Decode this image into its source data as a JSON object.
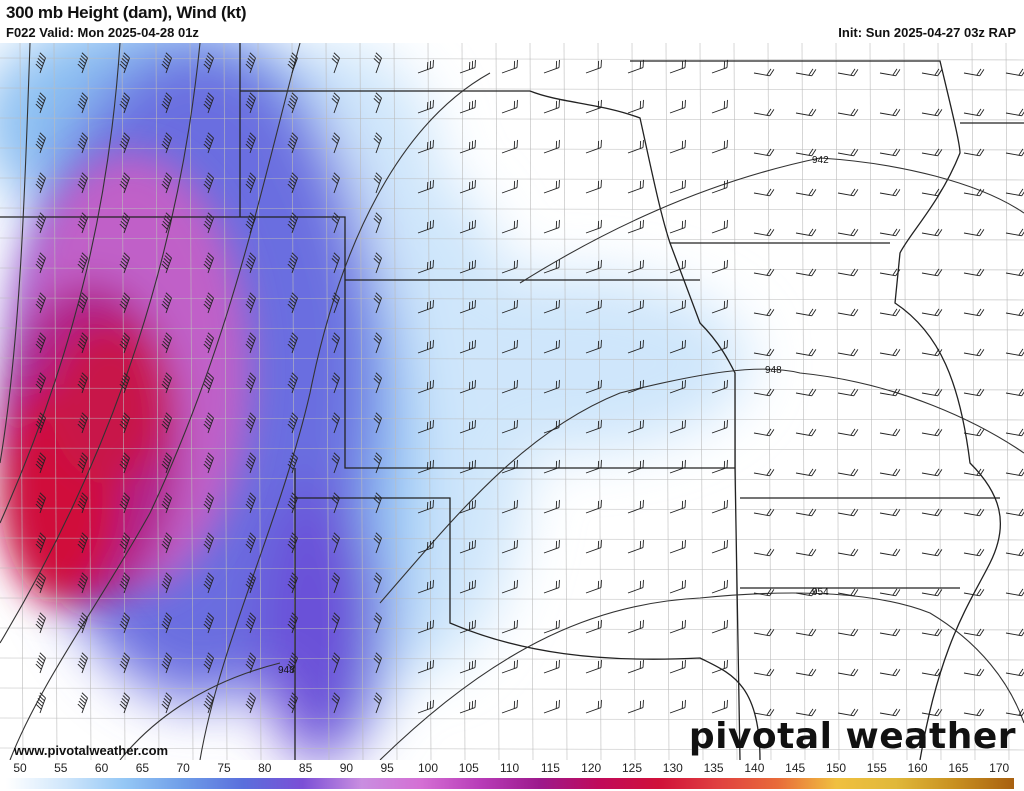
{
  "header": {
    "title": "300 mb Height (dam), Wind (kt)",
    "valid": "F022 Valid: Mon 2025-04-28 01z",
    "init": "Init: Sun 2025-04-27 03z RAP"
  },
  "map": {
    "contour_labels": [
      "942",
      "948",
      "954",
      "948"
    ],
    "field": "300 mb wind speed (kt)",
    "colors": {
      "light_blue": "#cfe6fb",
      "blue": "#6f9de8",
      "purple": "#7b4fd6",
      "magenta": "#c04fc8",
      "red": "#d0103a"
    }
  },
  "footer": {
    "website": "www.pivotalweather.com",
    "logo": "pivotal weather"
  },
  "colorbar": {
    "ticks": [
      "50",
      "55",
      "60",
      "65",
      "70",
      "75",
      "80",
      "85",
      "90",
      "95",
      "100",
      "105",
      "110",
      "115",
      "120",
      "125",
      "130",
      "135",
      "140",
      "145",
      "150",
      "155",
      "160",
      "165",
      "170"
    ],
    "colors": [
      "#ffffff",
      "#cfe6fb",
      "#94c7f5",
      "#6f9de8",
      "#5a6fdc",
      "#7b4fd6",
      "#c98ee0",
      "#d46fd4",
      "#b83cb8",
      "#9c1a8c",
      "#c00a5a",
      "#d0103a",
      "#e04040",
      "#e86a3a",
      "#f0c040",
      "#e0b83a",
      "#c89020",
      "#a86010"
    ]
  }
}
